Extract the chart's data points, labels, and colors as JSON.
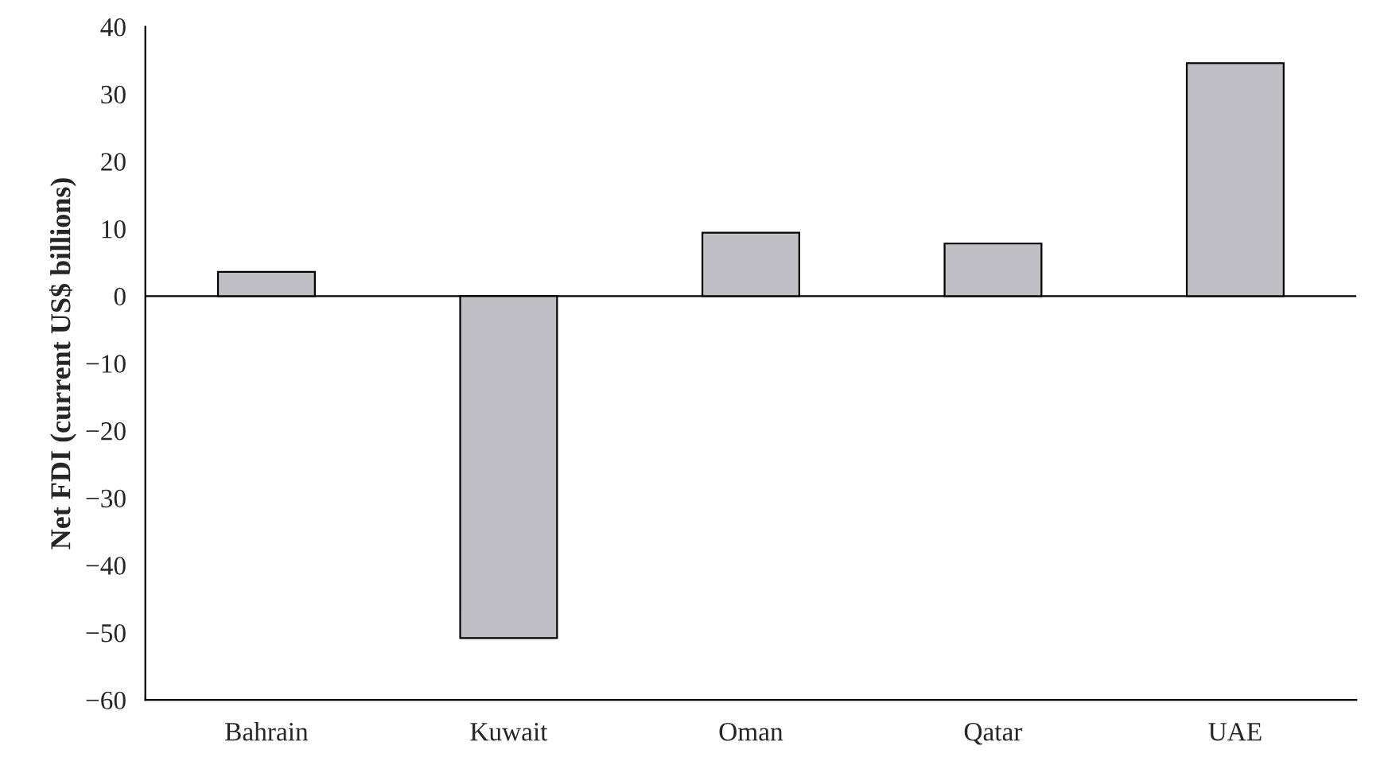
{
  "chart_data": {
    "type": "bar",
    "ylabel": "Net FDI (current US$ billions)",
    "categories": [
      "Bahrain",
      "Kuwait",
      "Oman",
      "Qatar",
      "UAE"
    ],
    "values": [
      3.6,
      -50.8,
      9.4,
      7.8,
      34.6
    ],
    "color": "#bfbfc4",
    "ylim": [
      -60,
      40
    ],
    "yticks": [
      {
        "value": -60,
        "label": "−60"
      },
      {
        "value": -50,
        "label": "−50"
      },
      {
        "value": -40,
        "label": "−40"
      },
      {
        "value": -30,
        "label": "−30"
      },
      {
        "value": -20,
        "label": "−20"
      },
      {
        "value": -10,
        "label": "−10"
      },
      0,
      10,
      20,
      30,
      40
    ],
    "ref_lines": [
      {
        "axis": "y",
        "value": 0,
        "color": "#000000"
      }
    ],
    "grid": false,
    "legend": false
  }
}
